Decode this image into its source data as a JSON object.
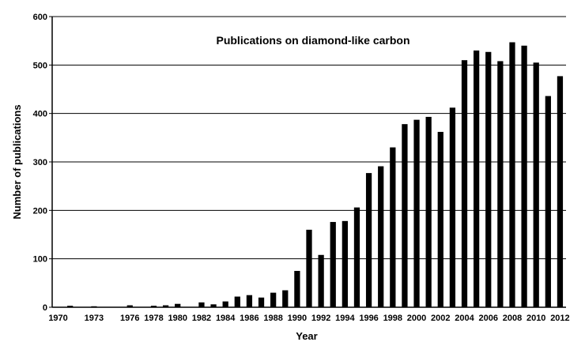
{
  "chart_data": {
    "type": "bar",
    "title": "Publications on diamond-like carbon",
    "xlabel": "Year",
    "ylabel": "Number of publications",
    "ylim": [
      0,
      600
    ],
    "yticks": [
      0,
      100,
      200,
      300,
      400,
      500,
      600
    ],
    "grid": true,
    "color": "#000000",
    "x": [
      1970,
      1971,
      1972,
      1973,
      1974,
      1975,
      1976,
      1977,
      1978,
      1979,
      1980,
      1981,
      1982,
      1983,
      1984,
      1985,
      1986,
      1987,
      1988,
      1989,
      1990,
      1991,
      1992,
      1993,
      1994,
      1995,
      1996,
      1997,
      1998,
      1999,
      2000,
      2001,
      2002,
      2003,
      2004,
      2005,
      2006,
      2007,
      2008,
      2009,
      2010,
      2011,
      2012
    ],
    "values": [
      0,
      3,
      0,
      2,
      0,
      0,
      4,
      0,
      3,
      4,
      7,
      0,
      10,
      6,
      12,
      22,
      25,
      20,
      30,
      35,
      75,
      160,
      108,
      176,
      178,
      206,
      277,
      291,
      330,
      378,
      387,
      393,
      362,
      412,
      510,
      530,
      527,
      508,
      547,
      540,
      505,
      436,
      477
    ],
    "x_tick_labels": [
      "1970",
      "1973",
      "1976",
      "1978",
      "1980",
      "1982",
      "1984",
      "1986",
      "1988",
      "1990",
      "1992",
      "1994",
      "1996",
      "1998",
      "2000",
      "2002",
      "2004",
      "2006",
      "2008",
      "2010",
      "2012"
    ]
  }
}
